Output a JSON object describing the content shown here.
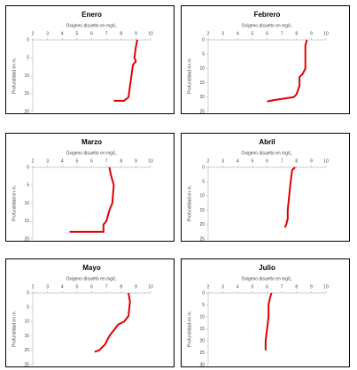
{
  "chart_data": [
    {
      "type": "line",
      "title": "Enero",
      "xlabel": "Oxigeno disuelto en mg/L.",
      "ylabel": "Profundidad en m.",
      "xlim": [
        2,
        10
      ],
      "xticks": [
        2,
        3,
        4,
        5,
        6,
        7,
        8,
        9,
        10
      ],
      "ylim": [
        0,
        20
      ],
      "yticks": [
        0,
        5,
        10,
        15,
        20
      ],
      "y_reversed": true,
      "color": "#e00000",
      "x": [
        9.1,
        9.0,
        8.9,
        9.0,
        8.8,
        8.7,
        8.6,
        8.5,
        8.2,
        7.5
      ],
      "values": [
        0,
        2,
        5,
        6,
        7,
        10,
        13,
        16,
        17,
        17
      ]
    },
    {
      "type": "line",
      "title": "Febrero",
      "xlabel": "Oxigeno disuelto en mg/L.",
      "ylabel": "Profundidad en m.",
      "xlim": [
        2,
        10
      ],
      "xticks": [
        2,
        3,
        4,
        5,
        6,
        7,
        8,
        9,
        10
      ],
      "ylim": [
        0,
        25
      ],
      "yticks": [
        0,
        5,
        10,
        15,
        20,
        25
      ],
      "y_reversed": true,
      "color": "#e00000",
      "x": [
        8.7,
        8.6,
        8.6,
        8.4,
        8.2,
        8.2,
        8.0,
        7.8,
        6.5,
        6.0
      ],
      "values": [
        0,
        2,
        10,
        12,
        13,
        16,
        19,
        20,
        21,
        21.5
      ]
    },
    {
      "type": "line",
      "title": "Marzo",
      "xlabel": "Oxigeno disuelto en mg/L.",
      "ylabel": "Profundidad en m.",
      "xlim": [
        2,
        10
      ],
      "xticks": [
        2,
        3,
        4,
        5,
        6,
        7,
        8,
        9,
        10
      ],
      "ylim": [
        0,
        20
      ],
      "yticks": [
        0,
        5,
        10,
        15,
        20
      ],
      "y_reversed": true,
      "color": "#e00000",
      "x": [
        7.2,
        7.3,
        7.5,
        7.4,
        7.2,
        7.0,
        6.8,
        6.8,
        4.5
      ],
      "values": [
        0,
        2,
        5,
        10,
        12,
        15,
        16,
        18,
        18
      ]
    },
    {
      "type": "line",
      "title": "Abril",
      "xlabel": "Oxigeno disuelto en mg/L.",
      "ylabel": "Profundidad en m.",
      "xlim": [
        2,
        10
      ],
      "xticks": [
        2,
        3,
        4,
        5,
        6,
        7,
        8,
        9,
        10
      ],
      "ylim": [
        0,
        25
      ],
      "yticks": [
        0,
        5,
        10,
        15,
        20,
        25
      ],
      "y_reversed": true,
      "color": "#e00000",
      "x": [
        7.9,
        7.7,
        7.6,
        7.5,
        7.4,
        7.4,
        7.3,
        7.2
      ],
      "values": [
        0,
        1,
        5,
        10,
        15,
        18,
        20,
        21
      ]
    },
    {
      "type": "line",
      "title": "Mayo",
      "xlabel": "Oxigeno disuelto en mg/L.",
      "ylabel": "Profundidad en m.",
      "xlim": [
        2,
        10
      ],
      "xticks": [
        2,
        3,
        4,
        5,
        6,
        7,
        8,
        9,
        10
      ],
      "ylim": [
        0,
        25
      ],
      "yticks": [
        0,
        5,
        10,
        15,
        20,
        25
      ],
      "y_reversed": true,
      "color": "#e00000",
      "x": [
        8.5,
        8.6,
        8.5,
        8.2,
        7.8,
        7.5,
        7.2,
        6.9,
        6.5,
        6.2
      ],
      "values": [
        0,
        3,
        8,
        10,
        11,
        13,
        15,
        18,
        20,
        20.5
      ]
    },
    {
      "type": "line",
      "title": "Julio",
      "xlabel": "Oxigeno disuelto en mg/L.",
      "ylabel": "Profundidad en m.",
      "xlim": [
        2,
        10
      ],
      "xticks": [
        2,
        3,
        4,
        5,
        6,
        7,
        8,
        9,
        10
      ],
      "ylim": [
        0,
        30
      ],
      "yticks": [
        0,
        5,
        10,
        15,
        20,
        25,
        30
      ],
      "y_reversed": true,
      "color": "#e00000",
      "x": [
        6.3,
        6.2,
        6.1,
        6.1,
        6.0,
        5.9,
        5.9
      ],
      "values": [
        0,
        2,
        5,
        10,
        15,
        20,
        24
      ]
    }
  ]
}
